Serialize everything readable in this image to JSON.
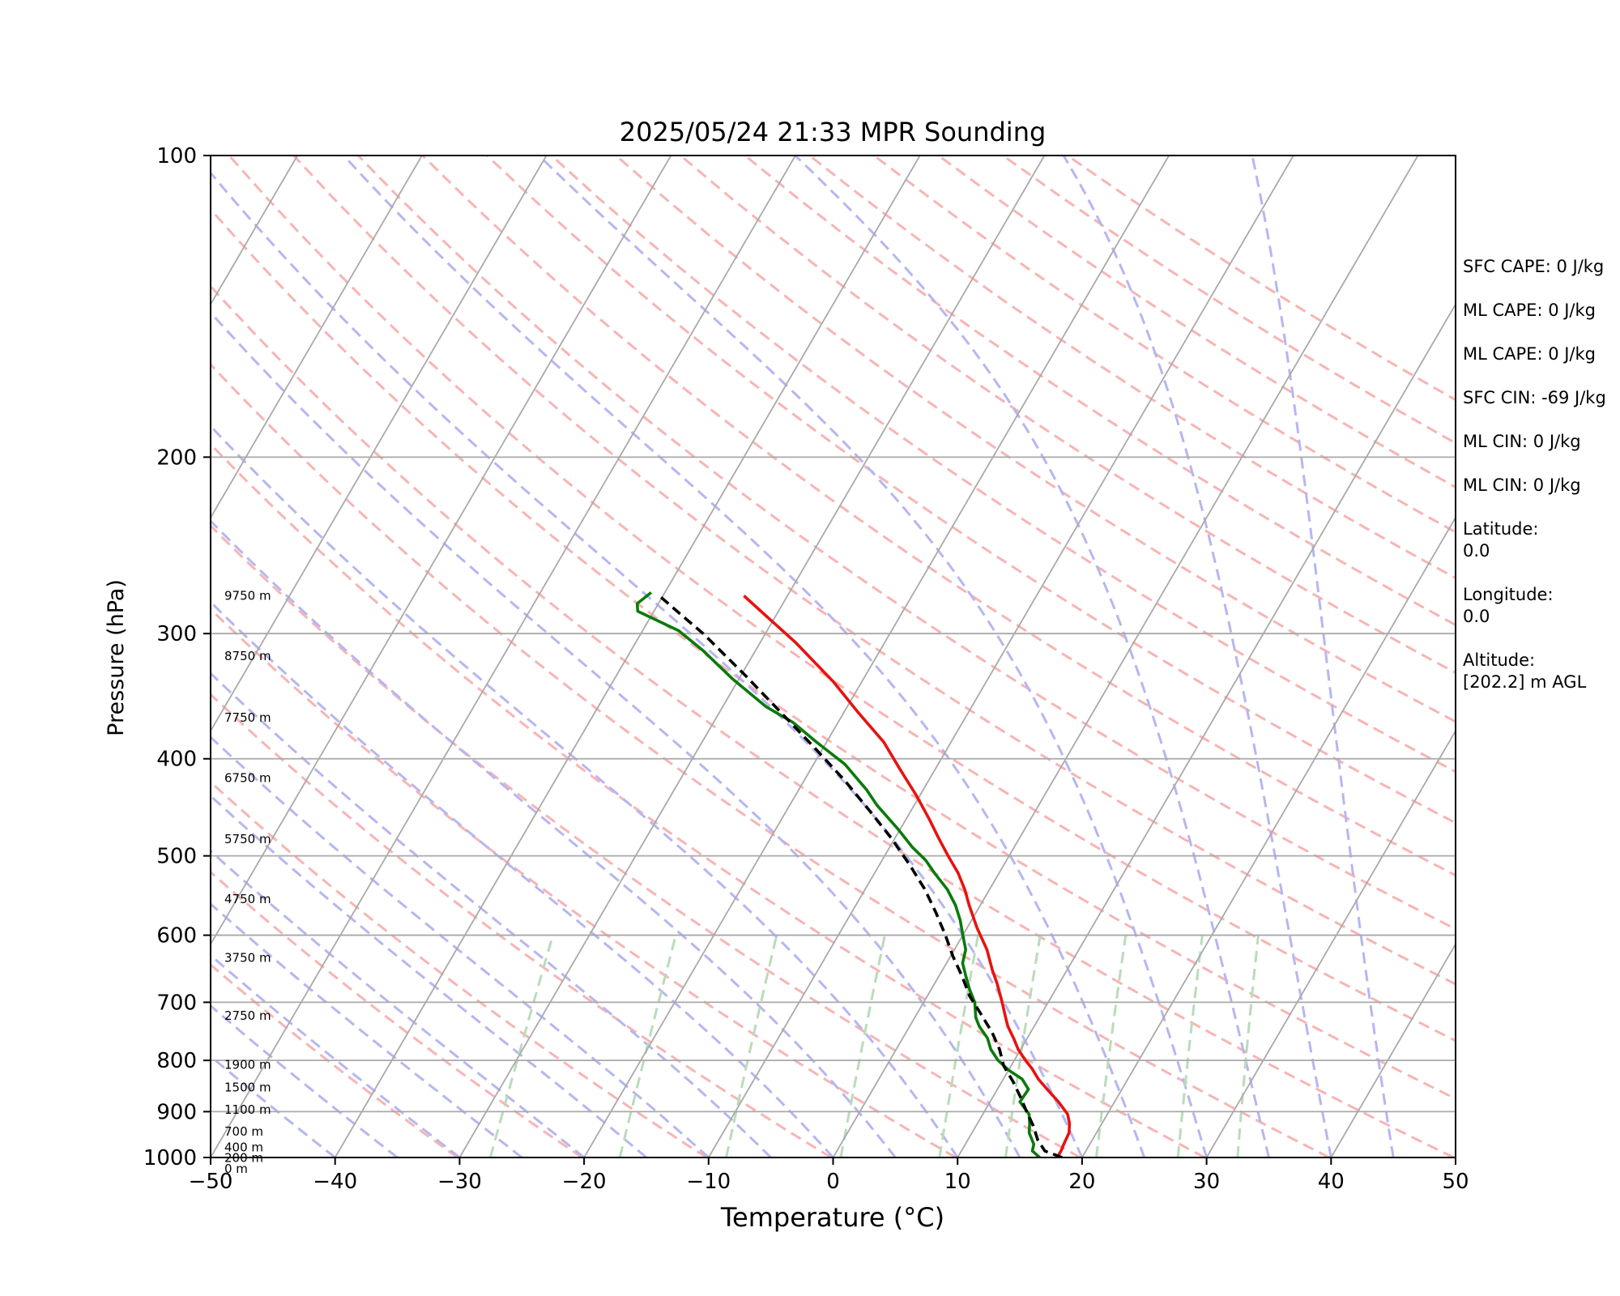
{
  "chart_data": {
    "type": "line",
    "subtype": "skew-T log-P sounding",
    "title": "2025/05/24 21:33 MPR Sounding",
    "xlabel": "Temperature (°C)",
    "ylabel": "Pressure (hPa)",
    "xlim": [
      -50,
      50
    ],
    "ylim": [
      1000,
      100
    ],
    "y_scale": "log",
    "x_ticks": [
      "−50",
      "−40",
      "−30",
      "−20",
      "−10",
      "0",
      "10",
      "20",
      "30",
      "40",
      "50"
    ],
    "y_ticks": [
      "100",
      "200",
      "300",
      "400",
      "500",
      "600",
      "700",
      "800",
      "900",
      "1000"
    ],
    "grid": true,
    "height_labels": [
      {
        "label": "9750 m",
        "pressure": 275
      },
      {
        "label": "8750 m",
        "pressure": 316
      },
      {
        "label": "7750 m",
        "pressure": 364
      },
      {
        "label": "6750 m",
        "pressure": 418
      },
      {
        "label": "5750 m",
        "pressure": 481
      },
      {
        "label": "4750 m",
        "pressure": 552
      },
      {
        "label": "3750 m",
        "pressure": 632
      },
      {
        "label": "2750 m",
        "pressure": 722
      },
      {
        "label": "1900 m",
        "pressure": 808
      },
      {
        "label": "1500 m",
        "pressure": 851
      },
      {
        "label": "1100 m",
        "pressure": 896
      },
      {
        "label": "700 m",
        "pressure": 942
      },
      {
        "label": "400 m",
        "pressure": 977
      },
      {
        "label": "200 m",
        "pressure": 1001
      },
      {
        "label": "0 m",
        "pressure": 1026
      }
    ],
    "series": [
      {
        "role": "temperature",
        "color": "#e8120f",
        "points": [
          [
            18.0,
            1000
          ],
          [
            18.0,
            985
          ],
          [
            17.9,
            968
          ],
          [
            17.8,
            945
          ],
          [
            17.4,
            925
          ],
          [
            16.8,
            905
          ],
          [
            15.5,
            880
          ],
          [
            14.0,
            855
          ],
          [
            12.8,
            835
          ],
          [
            11.8,
            815
          ],
          [
            10.9,
            800
          ],
          [
            9.8,
            780
          ],
          [
            8.9,
            760
          ],
          [
            7.9,
            740
          ],
          [
            7.3,
            725
          ],
          [
            6.3,
            700
          ],
          [
            5.0,
            670
          ],
          [
            4.0,
            650
          ],
          [
            2.6,
            620
          ],
          [
            0.8,
            590
          ],
          [
            -0.9,
            560
          ],
          [
            -2.0,
            540
          ],
          [
            -3.3,
            520
          ],
          [
            -4.9,
            500
          ],
          [
            -6.5,
            480
          ],
          [
            -8.1,
            460
          ],
          [
            -10.3,
            435
          ],
          [
            -12.8,
            410
          ],
          [
            -15.4,
            385
          ],
          [
            -18.8,
            360
          ],
          [
            -22.3,
            335
          ],
          [
            -27.2,
            306
          ],
          [
            -31.2,
            286
          ],
          [
            -33.5,
            275
          ]
        ]
      },
      {
        "role": "dewpoint",
        "color": "#0a7a0a",
        "points": [
          [
            16.6,
            1000
          ],
          [
            15.7,
            985
          ],
          [
            15.5,
            970
          ],
          [
            14.6,
            945
          ],
          [
            14.2,
            925
          ],
          [
            13.7,
            905
          ],
          [
            12.4,
            880
          ],
          [
            12.5,
            855
          ],
          [
            11.5,
            835
          ],
          [
            10.0,
            818
          ],
          [
            8.7,
            800
          ],
          [
            7.6,
            780
          ],
          [
            6.8,
            760
          ],
          [
            5.6,
            740
          ],
          [
            4.9,
            725
          ],
          [
            4.1,
            700
          ],
          [
            3.1,
            680
          ],
          [
            2.2,
            660
          ],
          [
            1.3,
            640
          ],
          [
            0.9,
            620
          ],
          [
            0.0,
            600
          ],
          [
            -0.9,
            580
          ],
          [
            -2.0,
            560
          ],
          [
            -3.4,
            540
          ],
          [
            -5.2,
            520
          ],
          [
            -6.5,
            505
          ],
          [
            -8.2,
            490
          ],
          [
            -10.2,
            470
          ],
          [
            -13.0,
            445
          ],
          [
            -14.5,
            430
          ],
          [
            -17.5,
            405
          ],
          [
            -20.8,
            385
          ],
          [
            -23.6,
            368
          ],
          [
            -26.5,
            355
          ],
          [
            -30.5,
            333
          ],
          [
            -34.2,
            312
          ],
          [
            -37.1,
            298
          ],
          [
            -41.3,
            285
          ],
          [
            -41.7,
            280
          ],
          [
            -41.1,
            273
          ]
        ]
      },
      {
        "role": "parcel",
        "color": "#000000",
        "style": "dashed",
        "points": [
          [
            18.4,
            1000
          ],
          [
            16.7,
            985
          ],
          [
            15.6,
            960
          ],
          [
            14.6,
            930
          ],
          [
            13.4,
            900
          ],
          [
            12.2,
            870
          ],
          [
            10.9,
            840
          ],
          [
            9.4,
            810
          ],
          [
            8.3,
            780
          ],
          [
            6.9,
            750
          ],
          [
            5.2,
            720
          ],
          [
            3.4,
            690
          ],
          [
            1.9,
            660
          ],
          [
            0.2,
            630
          ],
          [
            -1.4,
            600
          ],
          [
            -3.2,
            570
          ],
          [
            -5.2,
            540
          ],
          [
            -7.6,
            510
          ],
          [
            -10.3,
            480
          ],
          [
            -13.4,
            450
          ],
          [
            -16.8,
            420
          ],
          [
            -20.7,
            390
          ],
          [
            -25.0,
            360
          ],
          [
            -29.7,
            330
          ],
          [
            -35.0,
            300
          ],
          [
            -37.5,
            288
          ],
          [
            -40.3,
            275
          ]
        ]
      }
    ],
    "reference_lines": {
      "isotherms_color": "#a9a9a9",
      "dry_adiabats_color": "#f8b4b4",
      "moist_adiabats_color": "#b6b6f2",
      "mixing_ratio_color": "#b9dcb9"
    }
  },
  "stats": [
    "SFC CAPE: 0 J/kg",
    "ML CAPE: 0 J/kg",
    "ML CAPE: 0 J/kg",
    "SFC CIN: -69 J/kg",
    "ML CIN: 0 J/kg",
    "ML CIN: 0 J/kg",
    "Latitude:\n0.0",
    "Longitude:\n0.0",
    "Altitude:\n[202.2] m AGL"
  ]
}
